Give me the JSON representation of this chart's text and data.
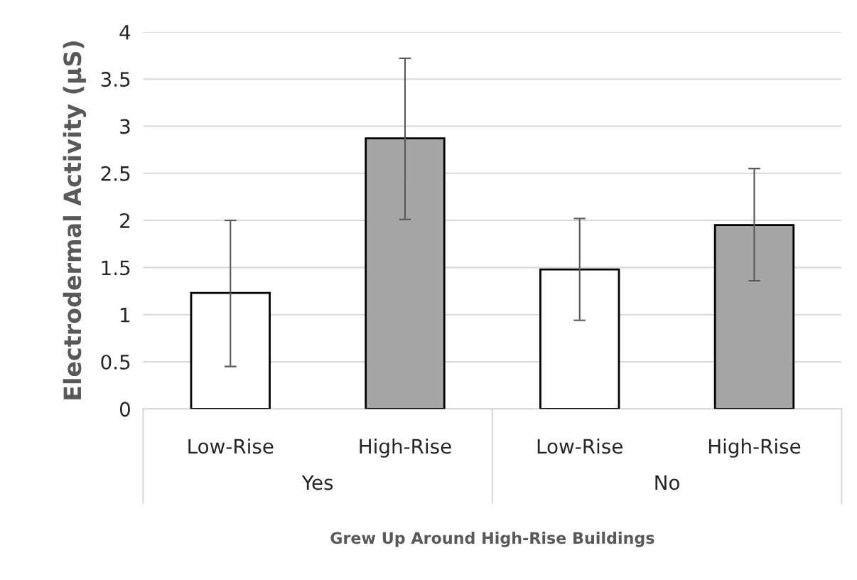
{
  "chart_data": {
    "type": "bar",
    "xlabel": "Grew Up Around High-Rise Buildings",
    "ylabel": "Electrodermal Activity (µS)",
    "categories": [
      "Low-Rise",
      "High-Rise",
      "Low-Rise",
      "High-Rise"
    ],
    "values": [
      1.23,
      2.87,
      1.48,
      1.95
    ],
    "colors": [
      "#ffffff",
      "#a6a6a6",
      "#ffffff",
      "#a6a6a6"
    ],
    "errors": [
      [
        0.45,
        2.0
      ],
      [
        2.01,
        3.72
      ],
      [
        0.94,
        2.02
      ],
      [
        1.36,
        2.55
      ]
    ],
    "annotations": [
      "Yes",
      "No"
    ],
    "ylim": [
      0,
      4
    ],
    "yticks": [
      0,
      0.5,
      1,
      1.5,
      2,
      2.5,
      3,
      3.5,
      4
    ],
    "grid": "y",
    "legend": false
  }
}
